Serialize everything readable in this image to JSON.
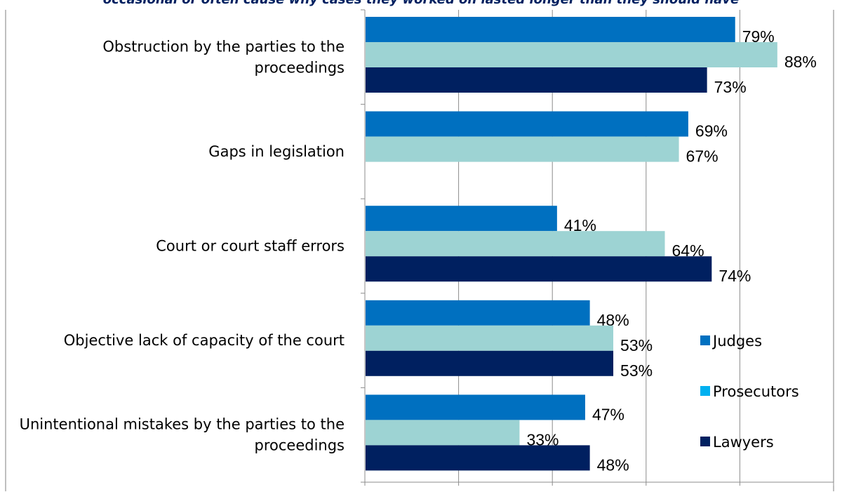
{
  "chart_data": {
    "type": "bar",
    "orientation": "horizontal",
    "title": "occasional or often cause why cases they worked on lasted longer than they should have",
    "categories": [
      "Obstruction by the parties to the proceedings",
      "Gaps in legislation",
      "Court or court staff errors",
      "Objective lack of capacity of the court",
      "Unintentional mistakes by the parties to the proceedings"
    ],
    "category_lines": [
      [
        "Obstruction by the parties to the",
        "proceedings"
      ],
      [
        "Gaps in legislation"
      ],
      [
        "Court or court staff errors"
      ],
      [
        "Objective lack of capacity of the court"
      ],
      [
        "Unintentional mistakes by the parties to the",
        "proceedings"
      ]
    ],
    "series": [
      {
        "name": "Judges",
        "values": [
          79,
          69,
          41,
          48,
          47
        ],
        "labels": [
          "79%",
          "69%",
          "41%",
          "48%",
          "47%"
        ]
      },
      {
        "name": "Prosecutors",
        "values": [
          88,
          67,
          64,
          53,
          33
        ],
        "labels": [
          "88%",
          "67%",
          "64%",
          "53%",
          "33%"
        ]
      },
      {
        "name": "Lawyers",
        "values": [
          73,
          null,
          74,
          53,
          48
        ],
        "labels": [
          "73%",
          null,
          "74%",
          "53%",
          "48%"
        ]
      }
    ],
    "colors": {
      "Judges": "#0070C0",
      "Prosecutors": "#9DD3D3",
      "Prosecutors_legend": "#00B0F0",
      "Lawyers": "#002060"
    },
    "xlim": [
      0,
      100
    ],
    "gridlines": true,
    "legend": "right"
  }
}
